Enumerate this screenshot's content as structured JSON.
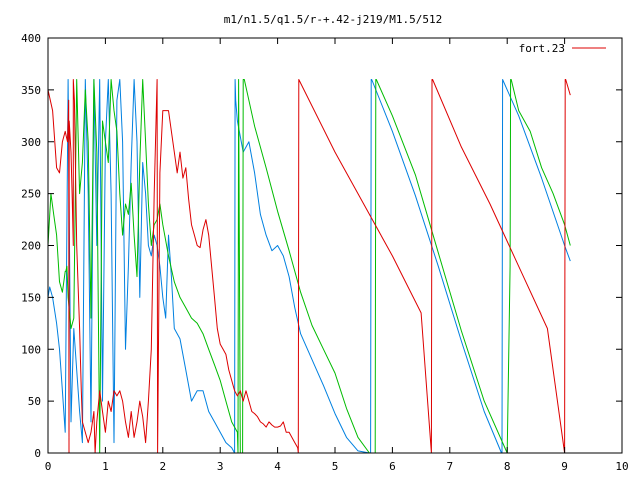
{
  "chart_data": {
    "type": "line",
    "title": "m1/n1.5/q1.5/r-+.42-j219/M1.5/512",
    "xlabel": "",
    "ylabel": "",
    "xlim": [
      0,
      10
    ],
    "ylim": [
      0,
      400
    ],
    "xticks": [
      "0",
      "1",
      "2",
      "3",
      "4",
      "5",
      "6",
      "7",
      "8",
      "9",
      "10"
    ],
    "yticks": [
      "0",
      "50",
      "100",
      "150",
      "200",
      "250",
      "300",
      "350",
      "400"
    ],
    "grid": false,
    "legend": {
      "position": "top-right",
      "entries": [
        "fort.23"
      ]
    },
    "colors": {
      "red": "#dd0000",
      "green": "#00bb00",
      "blue": "#0080e0",
      "axis": "#000000"
    },
    "series": [
      {
        "name": "fort.23",
        "color": "#dd0000",
        "x": [
          0.0,
          0.08,
          0.15,
          0.2,
          0.25,
          0.3,
          0.34,
          0.36,
          0.365,
          0.37,
          0.4,
          0.42,
          0.44,
          0.441,
          0.46,
          0.5,
          0.55,
          0.58,
          0.6,
          0.7,
          0.75,
          0.8,
          0.82,
          0.85,
          0.9,
          0.95,
          1.0,
          1.05,
          1.1,
          1.15,
          1.2,
          1.25,
          1.3,
          1.35,
          1.4,
          1.45,
          1.5,
          1.55,
          1.6,
          1.65,
          1.7,
          1.75,
          1.8,
          1.85,
          1.9,
          1.91,
          1.95,
          2.0,
          2.05,
          2.1,
          2.15,
          2.2,
          2.25,
          2.3,
          2.35,
          2.4,
          2.45,
          2.5,
          2.55,
          2.6,
          2.65,
          2.7,
          2.75,
          2.8,
          2.85,
          2.9,
          2.95,
          3.0,
          3.05,
          3.1,
          3.15,
          3.2,
          3.25,
          3.3,
          3.35,
          3.4,
          3.45,
          3.5,
          3.55,
          3.6,
          3.65,
          3.7,
          3.75,
          3.8,
          3.85,
          3.9,
          3.95,
          4.0,
          4.05,
          4.1,
          4.15,
          4.2,
          4.25,
          4.3,
          4.35,
          4.36,
          4.37,
          5.0,
          5.5,
          6.0,
          6.5,
          6.68,
          6.69,
          6.7,
          7.2,
          7.7,
          8.2,
          8.7,
          9.0,
          9.01,
          9.02,
          9.1
        ],
        "y": [
          350,
          330,
          275,
          270,
          300,
          310,
          300,
          340,
          0,
          320,
          290,
          250,
          200,
          360,
          340,
          200,
          120,
          60,
          30,
          10,
          20,
          40,
          0,
          30,
          60,
          40,
          20,
          50,
          40,
          60,
          55,
          60,
          50,
          30,
          15,
          40,
          15,
          30,
          50,
          35,
          10,
          50,
          100,
          250,
          360,
          0,
          270,
          330,
          330,
          330,
          310,
          290,
          270,
          290,
          265,
          275,
          245,
          220,
          210,
          200,
          198,
          215,
          225,
          210,
          180,
          150,
          120,
          105,
          100,
          95,
          80,
          70,
          60,
          55,
          60,
          50,
          60,
          50,
          40,
          38,
          35,
          30,
          28,
          25,
          30,
          27,
          25,
          25,
          26,
          30,
          20,
          20,
          15,
          10,
          5,
          0,
          360,
          290,
          240,
          190,
          135,
          0,
          360,
          360,
          295,
          240,
          180,
          120,
          0,
          360,
          360,
          345
        ]
      },
      {
        "name": "",
        "color": "#00bb00",
        "x": [
          0.0,
          0.05,
          0.1,
          0.15,
          0.2,
          0.25,
          0.3,
          0.31,
          0.33,
          0.35,
          0.4,
          0.45,
          0.5,
          0.55,
          0.6,
          0.65,
          0.7,
          0.75,
          0.8,
          0.85,
          0.9,
          0.95,
          1.0,
          1.05,
          1.1,
          1.15,
          1.2,
          1.25,
          1.3,
          1.35,
          1.4,
          1.45,
          1.5,
          1.55,
          1.6,
          1.65,
          1.7,
          1.75,
          1.8,
          1.85,
          1.9,
          1.95,
          2.0,
          2.1,
          2.2,
          2.3,
          2.4,
          2.5,
          2.6,
          2.7,
          2.8,
          2.9,
          3.0,
          3.1,
          3.2,
          3.3,
          3.31,
          3.32,
          3.35,
          3.39,
          3.4,
          3.41,
          3.42,
          3.6,
          3.8,
          4.0,
          4.2,
          4.4,
          4.6,
          4.8,
          5.0,
          5.2,
          5.4,
          5.6,
          5.7,
          5.71,
          5.72,
          6.0,
          6.4,
          6.8,
          7.2,
          7.6,
          8.0,
          8.05,
          8.06,
          8.07,
          8.2,
          8.4,
          8.6,
          8.8,
          9.0,
          9.1
        ],
        "y": [
          200,
          250,
          230,
          210,
          165,
          155,
          175,
          175,
          180,
          150,
          120,
          130,
          360,
          250,
          280,
          350,
          300,
          130,
          360,
          290,
          0,
          320,
          300,
          280,
          360,
          330,
          310,
          250,
          210,
          240,
          230,
          260,
          210,
          170,
          280,
          360,
          300,
          240,
          200,
          220,
          225,
          240,
          220,
          190,
          165,
          150,
          140,
          130,
          125,
          115,
          100,
          85,
          70,
          50,
          30,
          20,
          0,
          360,
          0,
          0,
          360,
          360,
          360,
          315,
          275,
          233,
          195,
          155,
          123,
          100,
          77,
          43,
          15,
          0,
          0,
          360,
          360,
          325,
          268,
          193,
          118,
          50,
          0,
          180,
          360,
          360,
          330,
          310,
          275,
          250,
          220,
          200
        ]
      },
      {
        "name": "",
        "color": "#0080e0",
        "x": [
          0.0,
          0.03,
          0.08,
          0.15,
          0.2,
          0.25,
          0.3,
          0.35,
          0.4,
          0.45,
          0.5,
          0.55,
          0.6,
          0.65,
          0.7,
          0.75,
          0.8,
          0.85,
          0.9,
          0.95,
          1.0,
          1.05,
          1.1,
          1.15,
          1.2,
          1.25,
          1.3,
          1.35,
          1.4,
          1.45,
          1.5,
          1.55,
          1.6,
          1.65,
          1.7,
          1.75,
          1.8,
          1.85,
          1.9,
          1.95,
          2.0,
          2.05,
          2.1,
          2.15,
          2.2,
          2.3,
          2.4,
          2.5,
          2.6,
          2.7,
          2.8,
          2.9,
          3.0,
          3.1,
          3.2,
          3.25,
          3.26,
          3.27,
          3.3,
          3.4,
          3.5,
          3.6,
          3.7,
          3.8,
          3.9,
          4.0,
          4.1,
          4.2,
          4.3,
          4.4,
          4.6,
          4.8,
          5.0,
          5.2,
          5.4,
          5.6,
          5.62,
          5.63,
          5.64,
          6.0,
          6.4,
          6.8,
          7.2,
          7.6,
          7.9,
          7.91,
          7.92,
          8.2,
          8.6,
          9.0,
          9.1
        ],
        "y": [
          150,
          160,
          150,
          125,
          100,
          60,
          20,
          360,
          30,
          120,
          80,
          40,
          10,
          360,
          250,
          30,
          360,
          200,
          360,
          50,
          300,
          360,
          250,
          10,
          340,
          360,
          300,
          100,
          180,
          280,
          360,
          300,
          150,
          280,
          250,
          200,
          190,
          210,
          200,
          180,
          150,
          130,
          210,
          170,
          120,
          110,
          80,
          50,
          60,
          60,
          40,
          30,
          20,
          10,
          5,
          0,
          360,
          340,
          320,
          290,
          300,
          270,
          230,
          210,
          195,
          200,
          190,
          170,
          140,
          115,
          90,
          65,
          38,
          15,
          2,
          0,
          0,
          360,
          360,
          310,
          248,
          180,
          108,
          40,
          0,
          0,
          360,
          325,
          265,
          200,
          185
        ]
      }
    ]
  }
}
